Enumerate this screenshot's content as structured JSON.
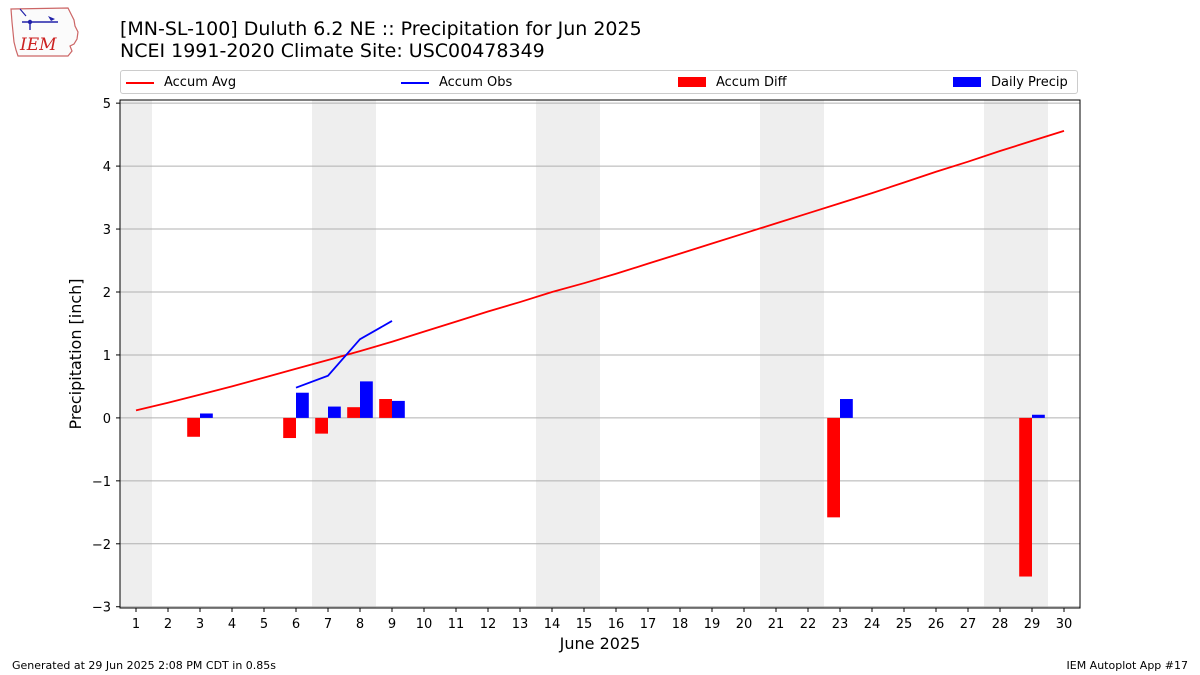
{
  "header": {
    "title_line1": "[MN-SL-100] Duluth 6.2 NE :: Precipitation for Jun 2025",
    "title_line2": "NCEI 1991-2020 Climate Site: USC00478349",
    "logo_text": "IEM"
  },
  "legend": {
    "accum_avg": "Accum Avg",
    "accum_obs": "Accum Obs",
    "accum_diff": "Accum Diff",
    "daily_precip": "Daily Precip"
  },
  "colors": {
    "accum_avg": "#ff0000",
    "accum_obs": "#0000ff",
    "accum_diff": "#ff0000",
    "daily_precip": "#0000ff",
    "weekend_shade": "#eeeeee",
    "grid": "#b0b0b0"
  },
  "footer": {
    "left": "Generated at 29 Jun 2025 2:08 PM CDT in 0.85s",
    "right": "IEM Autoplot App #17"
  },
  "chart_data": {
    "type": "bar",
    "xlabel": "June 2025",
    "ylabel": "Precipitation [inch]",
    "xlim": [
      0.5,
      30.5
    ],
    "ylim": [
      -3.02,
      5.05
    ],
    "grid": true,
    "legend_position": "top",
    "x_ticks": [
      1,
      2,
      3,
      4,
      5,
      6,
      7,
      8,
      9,
      10,
      11,
      12,
      13,
      14,
      15,
      16,
      17,
      18,
      19,
      20,
      21,
      22,
      23,
      24,
      25,
      26,
      27,
      28,
      29,
      30
    ],
    "y_ticks": [
      -3,
      -2,
      -1,
      0,
      1,
      2,
      3,
      4,
      5
    ],
    "y_tick_labels": [
      "−3",
      "−2",
      "−1",
      "0",
      "1",
      "2",
      "3",
      "4",
      "5"
    ],
    "weekend_days": [
      1,
      7,
      8,
      14,
      15,
      21,
      22,
      28,
      29
    ],
    "accum_avg": {
      "days": [
        1,
        30
      ],
      "values": [
        0.12,
        4.56
      ],
      "knot_days": [
        1,
        2,
        3,
        4,
        5,
        6,
        7,
        8,
        9,
        10,
        11,
        12,
        13,
        14,
        15,
        16,
        17,
        18,
        19,
        20,
        21,
        22,
        23,
        24,
        25,
        26,
        27,
        28,
        29,
        30
      ],
      "knot_values": [
        0.12,
        0.24,
        0.37,
        0.5,
        0.64,
        0.78,
        0.92,
        1.06,
        1.21,
        1.37,
        1.53,
        1.69,
        1.84,
        2.0,
        2.14,
        2.29,
        2.45,
        2.61,
        2.77,
        2.93,
        3.09,
        3.25,
        3.41,
        3.57,
        3.74,
        3.91,
        4.07,
        4.24,
        4.4,
        4.56
      ]
    },
    "accum_obs": {
      "days": [
        6,
        7,
        8,
        9
      ],
      "values": [
        0.48,
        0.67,
        1.25,
        1.54
      ]
    },
    "accum_diff": {
      "days": [
        3,
        6,
        7,
        8,
        9,
        23,
        29
      ],
      "values": [
        -0.3,
        -0.32,
        -0.25,
        0.17,
        0.3,
        -1.58,
        -2.52
      ]
    },
    "daily_precip": {
      "days": [
        3,
        6,
        7,
        8,
        9,
        23,
        29
      ],
      "values": [
        0.07,
        0.4,
        0.18,
        0.58,
        0.27,
        0.3,
        0.05
      ]
    }
  }
}
